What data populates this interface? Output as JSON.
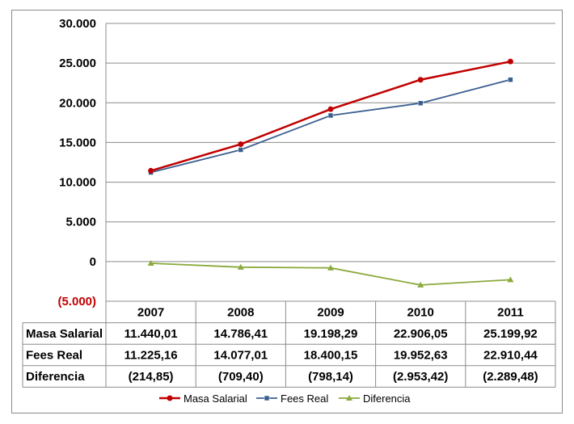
{
  "chart_data": {
    "type": "line",
    "categories": [
      "2007",
      "2008",
      "2009",
      "2010",
      "2011"
    ],
    "series": [
      {
        "name": "Masa Salarial",
        "color": "#c00000",
        "marker": "circle",
        "values": [
          11440.01,
          14786.41,
          19198.29,
          22906.05,
          25199.92
        ],
        "labels": [
          "11.440,01",
          "14.786,41",
          "19.198,29",
          "22.906,05",
          "25.199,92"
        ]
      },
      {
        "name": "Fees Real",
        "color": "#3a5f8f",
        "marker": "square",
        "values": [
          11225.16,
          14077.01,
          18400.15,
          19952.63,
          22910.44
        ],
        "labels": [
          "11.225,16",
          "14.077,01",
          "18.400,15",
          "19.952,63",
          "22.910,44"
        ]
      },
      {
        "name": "Diferencia",
        "color": "#8aaa3c",
        "marker": "triangle",
        "values": [
          -214.85,
          -709.4,
          -798.14,
          -2953.42,
          -2289.48
        ],
        "labels": [
          "(214,85)",
          "(709,40)",
          "(798,14)",
          "(2.953,42)",
          "(2.289,48)"
        ]
      }
    ],
    "ylim": [
      -5000,
      30000
    ],
    "yticks": [
      30000,
      25000,
      20000,
      15000,
      10000,
      5000,
      0,
      -5000
    ],
    "ytick_labels": [
      "30.000",
      "25.000",
      "20.000",
      "15.000",
      "10.000",
      "5.000",
      "0",
      "(5.000)"
    ],
    "negative_label_color": "#c00000",
    "grid": true,
    "data_table": true,
    "legend": "bottom"
  }
}
